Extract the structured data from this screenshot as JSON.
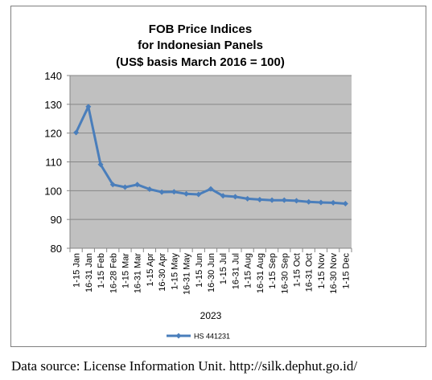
{
  "chart_data": {
    "type": "line",
    "title_lines": [
      "FOB Price Indices",
      "for Indonesian Panels",
      "(US$ basis March 2016 = 100)"
    ],
    "xlabel": "2023",
    "ylabel": "",
    "ylim": [
      80,
      140
    ],
    "yticks": [
      80,
      90,
      100,
      110,
      120,
      130,
      140
    ],
    "grid": true,
    "legend_position": "bottom",
    "categories": [
      "1-15 Jan",
      "16-31 Jan",
      "1-15 Feb",
      "16-28 Feb",
      "1-15 Mar",
      "16-31 Mar",
      "1-15 Apr",
      "16-30 Apr",
      "1-15 May",
      "16-31 May",
      "1-15 Jun",
      "16-30 Jun",
      "1-15 Jul",
      "16-31 Jul",
      "1-15 Aug",
      "16-31 Aug",
      "1-15 Sep",
      "16-30 Sep",
      "1-15 Oct",
      "16-31 Oct",
      "1-15 Nov",
      "16-30 Nov",
      "1-15 Dec"
    ],
    "series": [
      {
        "name": "HS 441231",
        "color": "#4a7ebb",
        "values": [
          120.2,
          129.2,
          109.1,
          102.1,
          101.2,
          102.1,
          100.5,
          99.5,
          99.6,
          98.9,
          98.7,
          100.6,
          98.2,
          97.9,
          97.2,
          96.9,
          96.7,
          96.7,
          96.5,
          96.1,
          95.9,
          95.8,
          95.5
        ]
      }
    ],
    "colors": {
      "plot_background": "#c0c0c0",
      "gridline": "#868686",
      "line": "#4a7ebb"
    }
  },
  "footer": {
    "source_text": "Data source: License Information Unit. http://silk.dephut.go.id/"
  }
}
